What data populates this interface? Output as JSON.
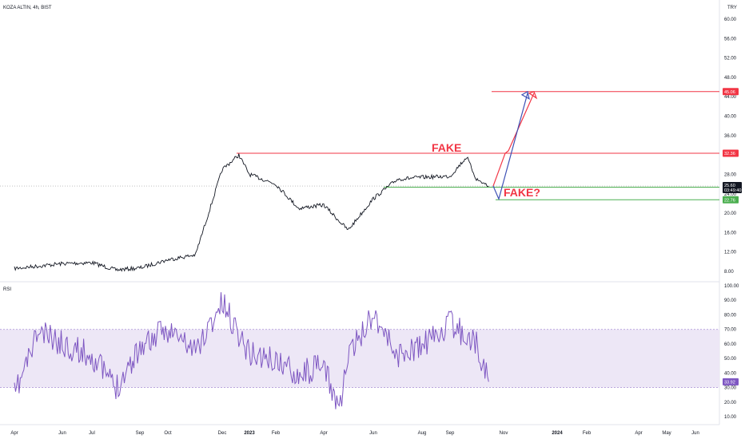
{
  "chart_data": {
    "type": "line",
    "title": "KOZA ALTIN, 4h, BIST",
    "currency": "TRY",
    "x_ticks": [
      "Apr",
      "Jun",
      "Jul",
      "Sep",
      "Oct",
      "Dec",
      "2023",
      "Feb",
      "Apr",
      "Jun",
      "Aug",
      "Sep",
      "Nov",
      "2024",
      "Feb",
      "Apr",
      "May",
      "Jun"
    ],
    "price_axis": {
      "ticks": [
        "60.00",
        "56.00",
        "52.00",
        "48.00",
        "44.00",
        "40.00",
        "36.00",
        "28.00",
        "24.00",
        "20.00",
        "16.00",
        "12.00",
        "8.00"
      ],
      "ylim": [
        6,
        62
      ]
    },
    "price_series": {
      "name": "KOZA ALTIN",
      "x": [
        "2022-04",
        "2022-06",
        "2022-07",
        "2022-08",
        "2022-09",
        "2022-10",
        "2022-11",
        "2022-12",
        "2022-12-20",
        "2023-01",
        "2023-02",
        "2023-03",
        "2023-04",
        "2023-05",
        "2023-06",
        "2023-07",
        "2023-08",
        "2023-09",
        "2023-09-20",
        "2023-10",
        "2023-10-15"
      ],
      "y": [
        8.6,
        9.6,
        9.8,
        8.3,
        8.7,
        10.4,
        11.4,
        29.0,
        32.0,
        28.0,
        26.0,
        21.0,
        21.7,
        16.5,
        23.0,
        27.0,
        27.4,
        27.6,
        31.6,
        27.0,
        25.6
      ]
    },
    "levels": [
      {
        "label": "32.36",
        "value": 32.36,
        "color": "#f23645"
      },
      {
        "label": "45.06",
        "value": 45.06,
        "color": "#f23645"
      },
      {
        "label": "25.36",
        "value": 25.36,
        "color": "#4caf50"
      },
      {
        "label": "22.76",
        "value": 22.76,
        "color": "#4caf50"
      }
    ],
    "current_price": {
      "label": "25.60",
      "sub_label": "03:49:40",
      "value": 25.6,
      "color": "#131722"
    },
    "annotations": [
      "FAKE",
      "FAKE?"
    ],
    "rsi": {
      "name": "RSI",
      "ticks": [
        "100.00",
        "90.00",
        "80.00",
        "70.00",
        "60.00",
        "50.00",
        "40.00",
        "30.00",
        "20.00",
        "10.00"
      ],
      "ylim": [
        0,
        100
      ],
      "band": [
        30,
        70
      ],
      "current": {
        "label": "33.92",
        "value": 33.92
      },
      "x": [
        "2022-04",
        "2022-05",
        "2022-06",
        "2022-07",
        "2022-08",
        "2022-09",
        "2022-10",
        "2022-11",
        "2022-12",
        "2023-01",
        "2023-02",
        "2023-03",
        "2023-04",
        "2023-04-20",
        "2023-05",
        "2023-06",
        "2023-07",
        "2023-08",
        "2023-09",
        "2023-10",
        "2023-10-15"
      ],
      "y": [
        24,
        68,
        60,
        52,
        30,
        58,
        70,
        55,
        88,
        54,
        48,
        40,
        44,
        16,
        50,
        82,
        52,
        58,
        74,
        60,
        34
      ]
    },
    "colors": {
      "price": "#131722",
      "rsi": "#7e57c2",
      "rsi_band": "#ede7f6",
      "up": "#f23645",
      "forecast_down": "#3f51b5"
    }
  }
}
